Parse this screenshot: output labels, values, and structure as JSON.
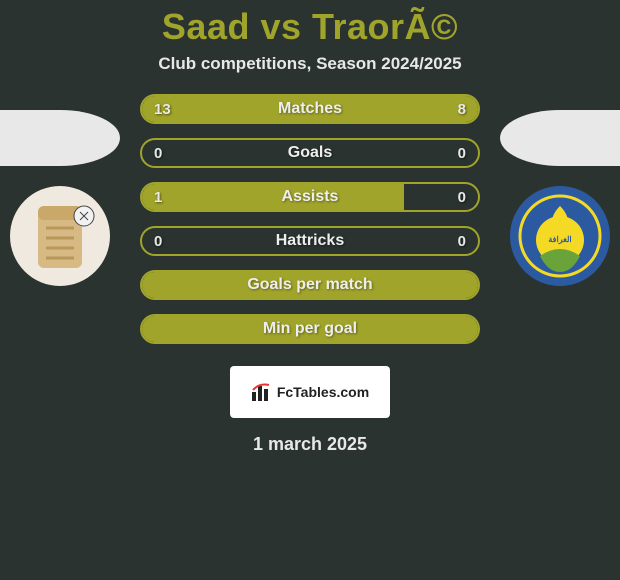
{
  "title": "Saad vs TraorÃ©",
  "subtitle": "Club competitions, Season 2024/2025",
  "bars": [
    {
      "label": "Matches",
      "left": "13",
      "right": "8",
      "leftFill": 62,
      "rightFill": 38
    },
    {
      "label": "Goals",
      "left": "0",
      "right": "0",
      "leftFill": 0,
      "rightFill": 0
    },
    {
      "label": "Assists",
      "left": "1",
      "right": "0",
      "leftFill": 78,
      "rightFill": 0
    },
    {
      "label": "Hattricks",
      "left": "0",
      "right": "0",
      "leftFill": 0,
      "rightFill": 0
    },
    {
      "label": "Goals per match",
      "left": "",
      "right": "",
      "leftFill": 100,
      "rightFill": 0
    },
    {
      "label": "Min per goal",
      "left": "",
      "right": "",
      "leftFill": 100,
      "rightFill": 0
    }
  ],
  "brand": "FcTables.com",
  "date": "1 march 2025",
  "colors": {
    "accent": "#a0a42a",
    "bg": "#2a332f",
    "text": "#e8e8e8"
  }
}
